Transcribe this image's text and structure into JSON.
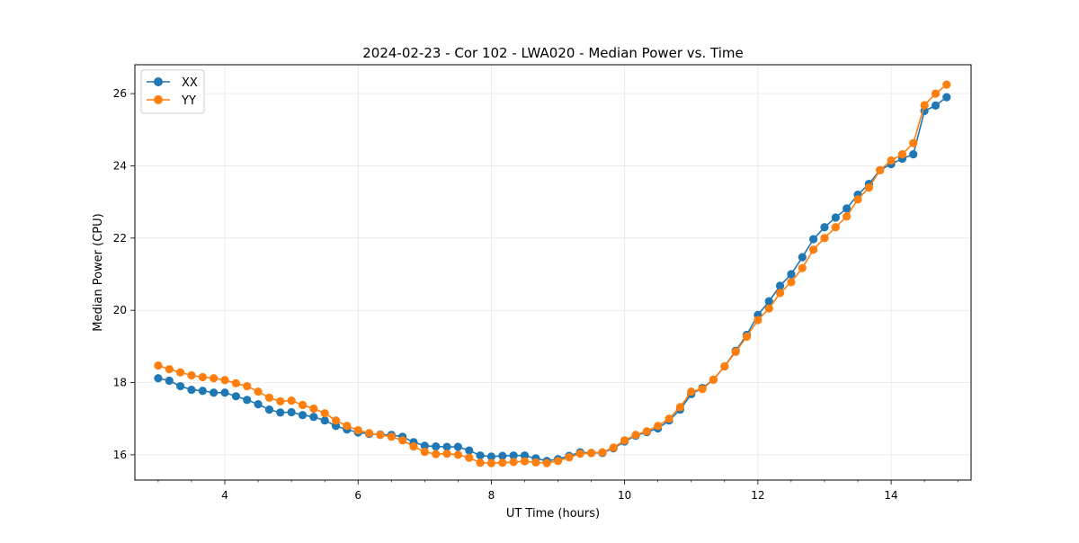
{
  "chart_data": {
    "type": "line",
    "title": "2024-02-23 - Cor 102 - LWA020 - Median Power vs. Time",
    "xlabel": "UT Time (hours)",
    "ylabel": "Median Power (CPU)",
    "xlim": [
      2.65,
      15.2
    ],
    "ylim": [
      15.3,
      26.8
    ],
    "xticks": [
      4,
      6,
      8,
      10,
      12,
      14
    ],
    "xtick_labels": [
      "4",
      "6",
      "8",
      "10",
      "12",
      "14"
    ],
    "yticks": [
      16,
      18,
      20,
      22,
      24,
      26
    ],
    "ytick_labels": [
      "16",
      "18",
      "20",
      "22",
      "24",
      "26"
    ],
    "grid": true,
    "legend_position": "upper-left",
    "x": [
      3.0,
      3.167,
      3.333,
      3.5,
      3.667,
      3.833,
      4.0,
      4.167,
      4.333,
      4.5,
      4.667,
      4.833,
      5.0,
      5.167,
      5.333,
      5.5,
      5.667,
      5.833,
      6.0,
      6.167,
      6.333,
      6.5,
      6.667,
      6.833,
      7.0,
      7.167,
      7.333,
      7.5,
      7.667,
      7.833,
      8.0,
      8.167,
      8.333,
      8.5,
      8.667,
      8.833,
      9.0,
      9.167,
      9.333,
      9.5,
      9.667,
      9.833,
      10.0,
      10.167,
      10.333,
      10.5,
      10.667,
      10.833,
      11.0,
      11.167,
      11.333,
      11.5,
      11.667,
      11.833,
      12.0,
      12.167,
      12.333,
      12.5,
      12.667,
      12.833,
      13.0,
      13.167,
      13.333,
      13.5,
      13.667,
      13.833,
      14.0,
      14.167,
      14.333,
      14.5,
      14.667,
      14.833
    ],
    "series": [
      {
        "name": "XX",
        "color": "#1f77b4",
        "values": [
          18.12,
          18.05,
          17.9,
          17.8,
          17.77,
          17.72,
          17.72,
          17.62,
          17.52,
          17.4,
          17.25,
          17.17,
          17.18,
          17.1,
          17.05,
          16.95,
          16.8,
          16.7,
          16.62,
          16.58,
          16.56,
          16.55,
          16.5,
          16.35,
          16.25,
          16.23,
          16.22,
          16.22,
          16.12,
          15.98,
          15.95,
          15.97,
          15.98,
          15.98,
          15.9,
          15.83,
          15.88,
          15.97,
          16.07,
          16.05,
          16.05,
          16.18,
          16.37,
          16.53,
          16.63,
          16.73,
          16.95,
          17.25,
          17.68,
          17.85,
          18.08,
          18.45,
          18.88,
          19.32,
          19.87,
          20.25,
          20.68,
          21.0,
          21.47,
          21.97,
          22.3,
          22.57,
          22.82,
          23.2,
          23.5,
          23.88,
          24.05,
          24.2,
          24.32,
          25.52,
          25.67,
          25.9
        ]
      },
      {
        "name": "YY",
        "color": "#ff7f0e",
        "values": [
          18.47,
          18.37,
          18.28,
          18.2,
          18.15,
          18.12,
          18.07,
          17.98,
          17.9,
          17.75,
          17.58,
          17.48,
          17.5,
          17.38,
          17.28,
          17.15,
          16.95,
          16.8,
          16.68,
          16.6,
          16.55,
          16.5,
          16.4,
          16.23,
          16.08,
          16.02,
          16.03,
          16.0,
          15.92,
          15.78,
          15.77,
          15.78,
          15.8,
          15.82,
          15.79,
          15.77,
          15.83,
          15.93,
          16.03,
          16.05,
          16.07,
          16.2,
          16.4,
          16.55,
          16.65,
          16.8,
          17.0,
          17.32,
          17.75,
          17.82,
          18.08,
          18.45,
          18.85,
          19.27,
          19.73,
          20.05,
          20.48,
          20.78,
          21.17,
          21.68,
          22.0,
          22.3,
          22.6,
          23.07,
          23.4,
          23.88,
          24.15,
          24.32,
          24.63,
          25.68,
          26.0,
          26.25
        ]
      }
    ]
  }
}
